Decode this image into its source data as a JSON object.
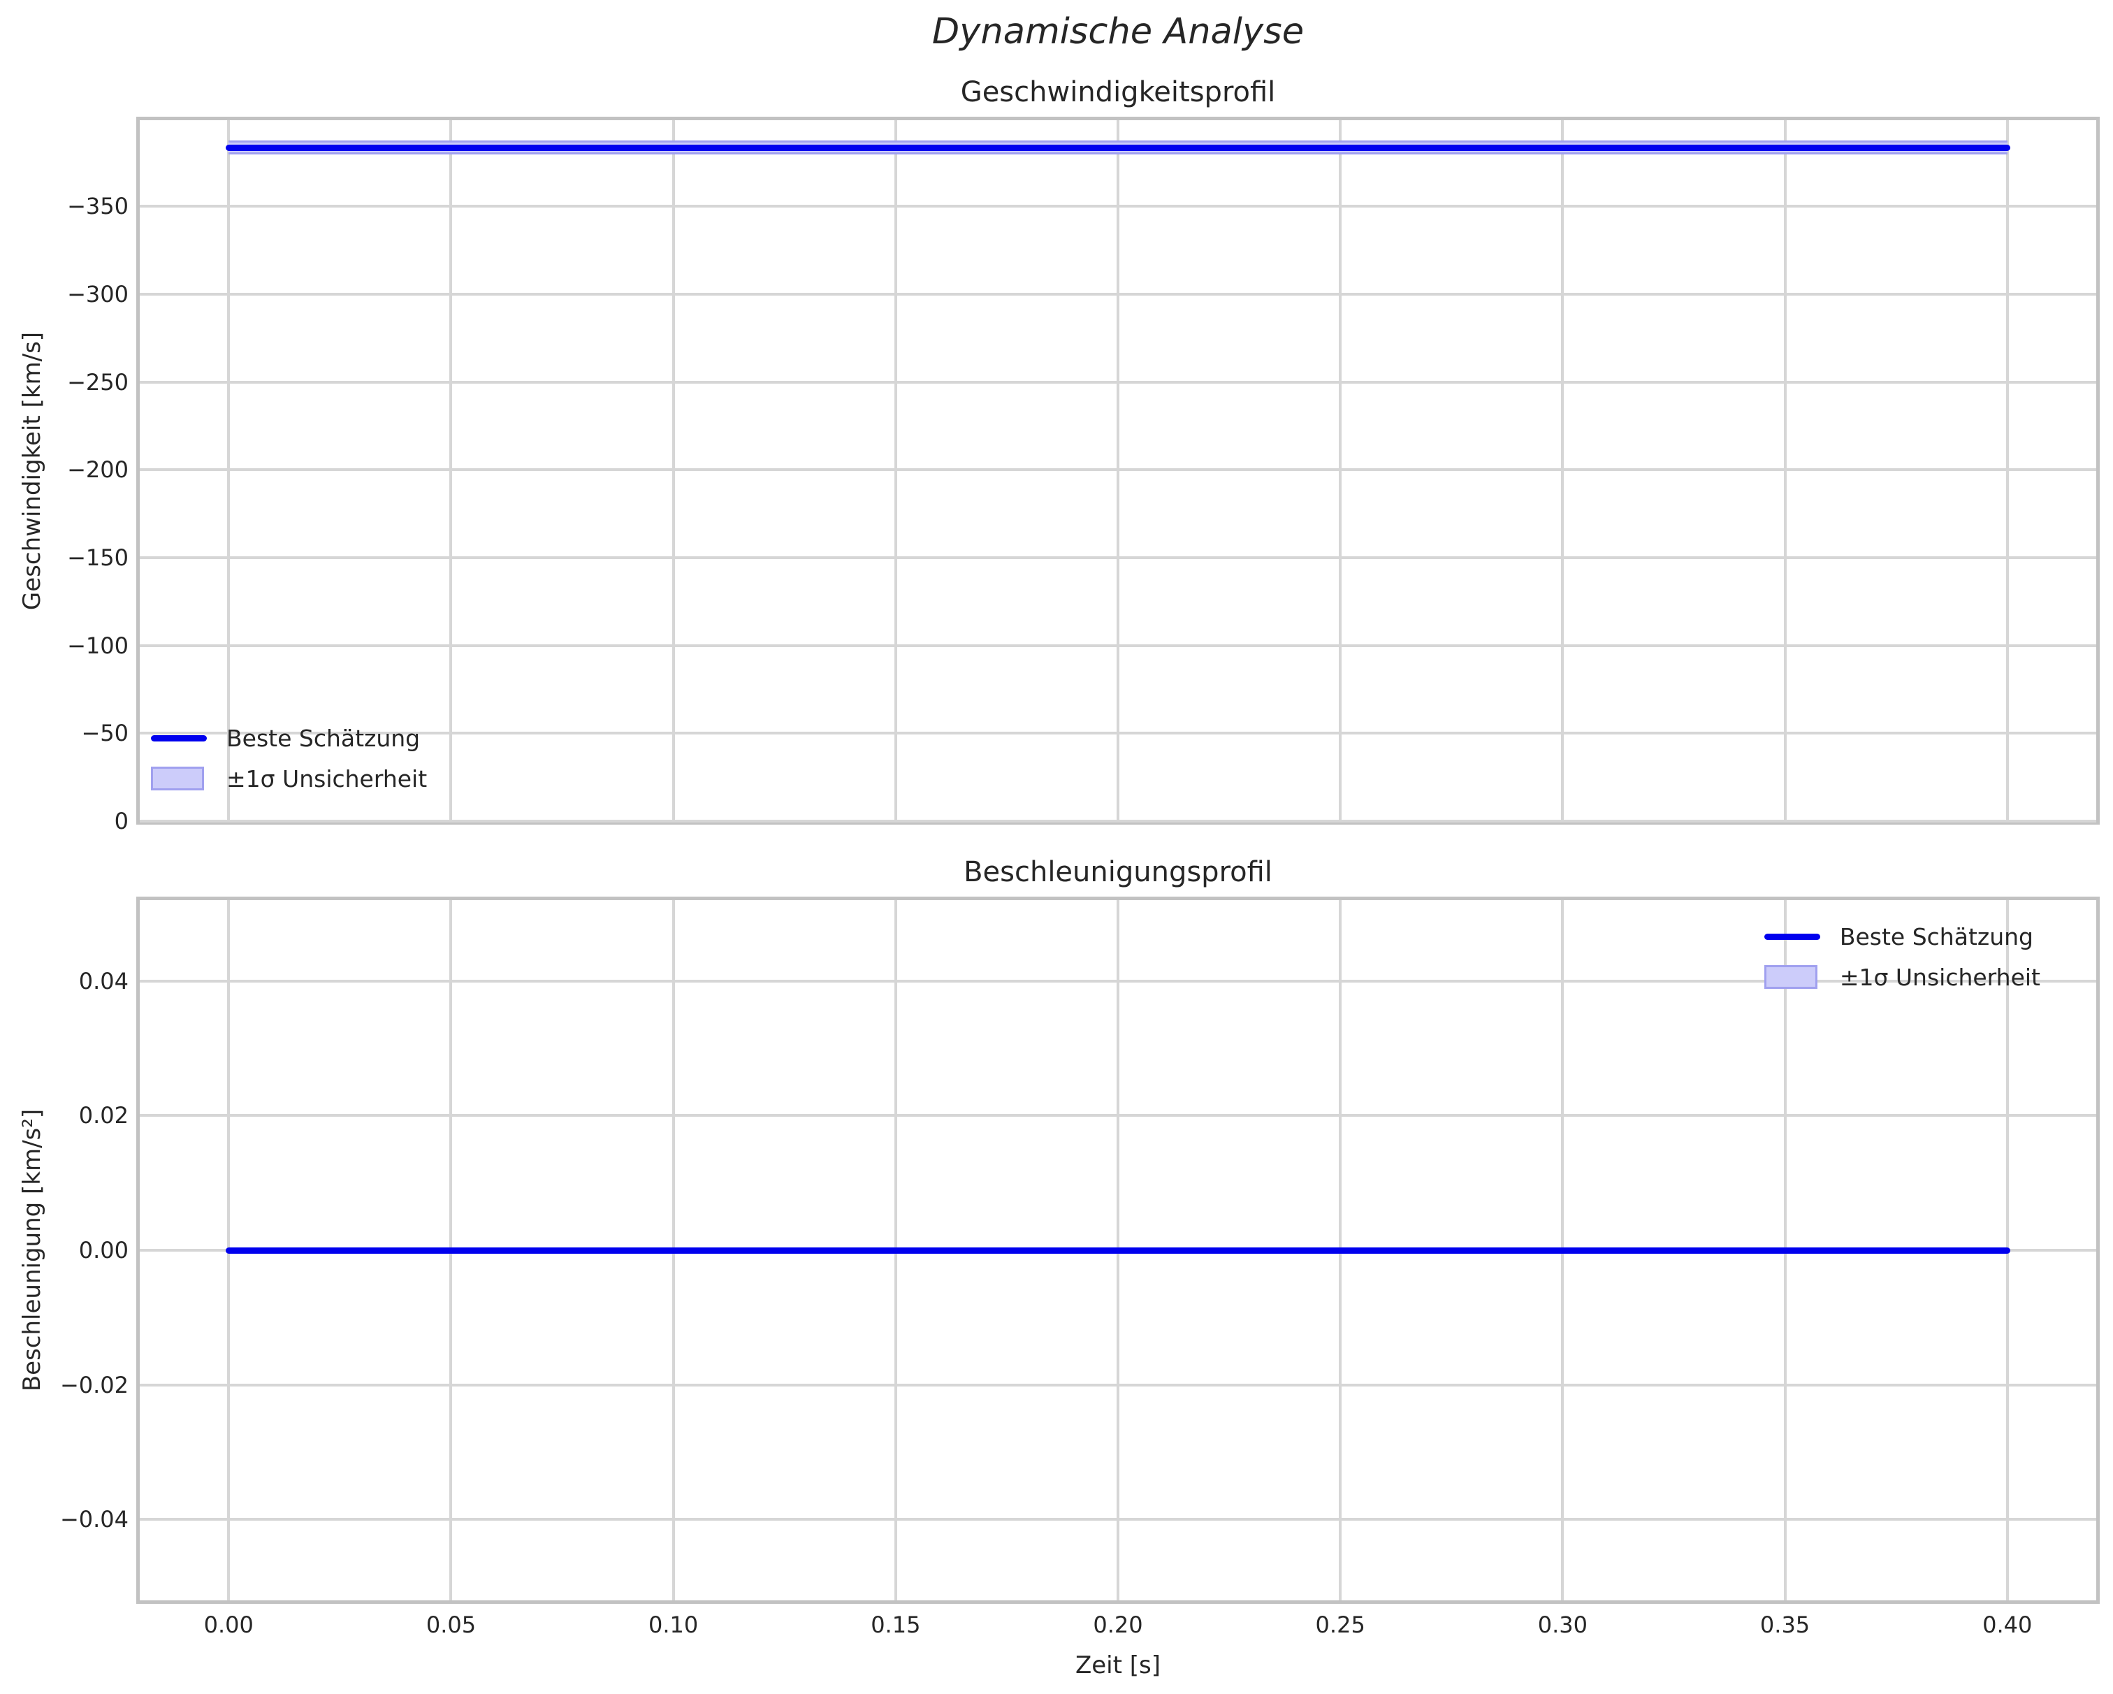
{
  "figure": {
    "suptitle": "Dynamische Analyse"
  },
  "style": {
    "line_color": "#0000ee",
    "band_fill": "#ccccfa",
    "band_edge": "#a0a0ef",
    "grid_color": "#d6d6d6",
    "spine_color": "#c2c2c2",
    "text_color": "#262626",
    "background": "#ffffff"
  },
  "chart_data": [
    {
      "type": "line",
      "title": "Geschwindigkeitsprofil",
      "xlabel": "",
      "ylabel": "Geschwindigkeit [km/s]",
      "x": [
        0.0,
        0.4
      ],
      "series": [
        {
          "name": "Beste Schätzung",
          "values": [
            -383.4,
            -383.4
          ]
        }
      ],
      "uncertainty_band": {
        "name": "±1σ Unsicherheit",
        "sigma": 4.0
      },
      "xlim": [
        -0.02,
        0.42
      ],
      "ylim": [
        0,
        -399
      ],
      "y_axis_inverted": true,
      "grid": true,
      "legend_position": "lower left",
      "xticks": {
        "values": [
          0.0,
          0.05,
          0.1,
          0.15,
          0.2,
          0.25,
          0.3,
          0.35,
          0.4
        ],
        "labels": [
          "0.00",
          "0.05",
          "0.10",
          "0.15",
          "0.20",
          "0.25",
          "0.30",
          "0.35",
          "0.40"
        ],
        "show_labels": false
      },
      "yticks": {
        "values": [
          -350,
          -300,
          -250,
          -200,
          -150,
          -100,
          -50,
          0
        ],
        "labels": [
          "−350",
          "−300",
          "−250",
          "−200",
          "−150",
          "−100",
          "−50",
          "0"
        ]
      }
    },
    {
      "type": "line",
      "title": "Beschleunigungsprofil",
      "xlabel": "Zeit [s]",
      "ylabel": "Beschleunigung [km/s²]",
      "x": [
        0.0,
        0.4
      ],
      "series": [
        {
          "name": "Beste Schätzung",
          "values": [
            0.0,
            0.0
          ]
        }
      ],
      "uncertainty_band": {
        "name": "±1σ Unsicherheit",
        "sigma": 0.0
      },
      "xlim": [
        -0.02,
        0.42
      ],
      "ylim": [
        -0.052,
        0.052
      ],
      "y_axis_inverted": false,
      "grid": true,
      "legend_position": "upper right",
      "xticks": {
        "values": [
          0.0,
          0.05,
          0.1,
          0.15,
          0.2,
          0.25,
          0.3,
          0.35,
          0.4
        ],
        "labels": [
          "0.00",
          "0.05",
          "0.10",
          "0.15",
          "0.20",
          "0.25",
          "0.30",
          "0.35",
          "0.40"
        ],
        "show_labels": true
      },
      "yticks": {
        "values": [
          0.04,
          0.02,
          0.0,
          -0.02,
          -0.04
        ],
        "labels": [
          "0.04",
          "0.02",
          "0.00",
          "−0.02",
          "−0.04"
        ]
      }
    }
  ]
}
